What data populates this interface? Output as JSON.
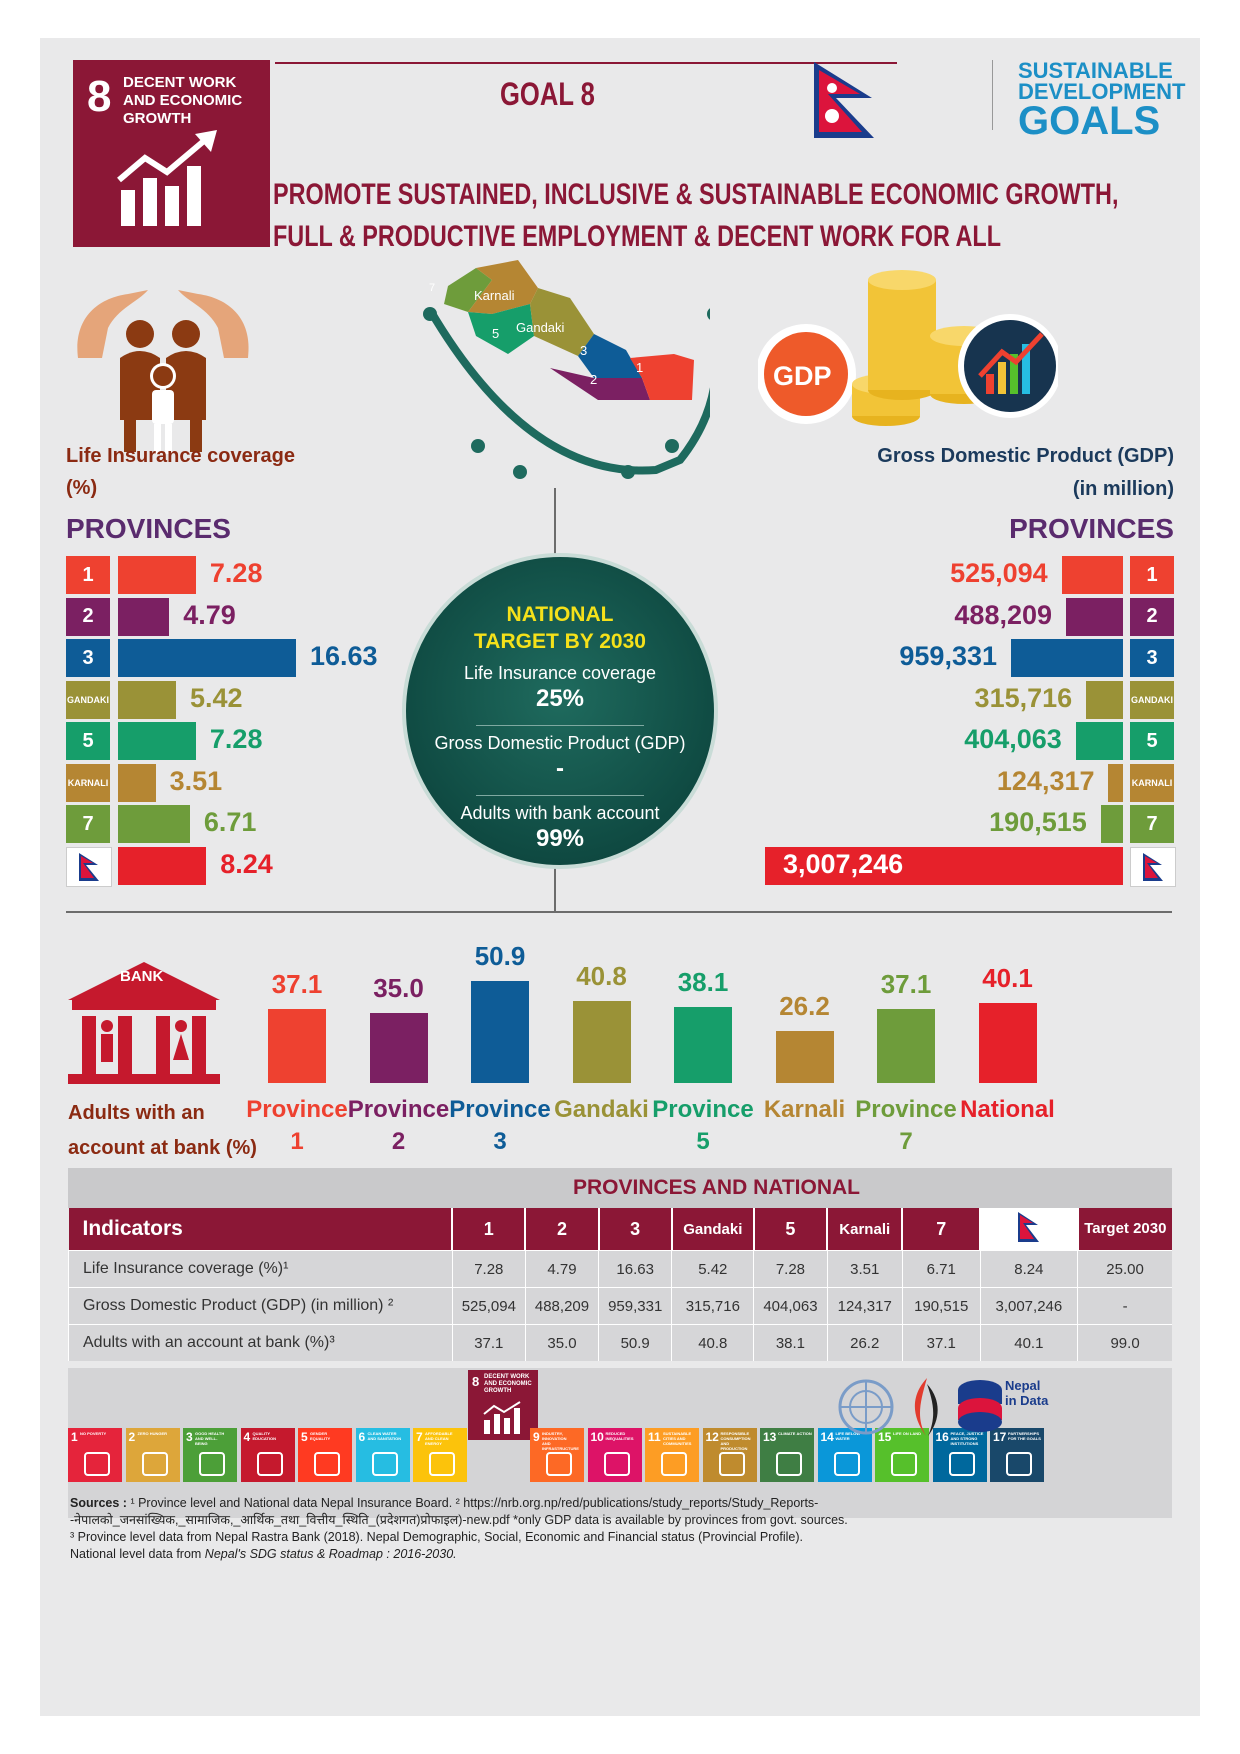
{
  "header": {
    "goal_number": "8",
    "goal_name": "DECENT WORK AND ECONOMIC GROWTH",
    "goal_title": "GOAL 8",
    "headline_line1": "PROMOTE SUSTAINED, INCLUSIVE & SUSTAINABLE ECONOMIC GROWTH,",
    "headline_line2": "FULL & PRODUCTIVE EMPLOYMENT & DECENT WORK FOR ALL",
    "sdg_logo_line1": "SUSTAINABLE",
    "sdg_logo_line2": "DEVELOPMENT",
    "sdg_logo_line3": "GOALS"
  },
  "colors": {
    "p1": "#ee4130",
    "p2": "#7b2062",
    "p3": "#0e5c97",
    "gandaki": "#9a9237",
    "p5": "#169e6a",
    "karnali": "#b58633",
    "p7": "#6e9c3b",
    "national": "#e6212a"
  },
  "map_labels": [
    "7",
    "Karnali",
    "5",
    "Gandaki",
    "3",
    "2",
    "1"
  ],
  "gdp_badge": "GDP",
  "life_insurance": {
    "title_line1": "Life Insurance coverage",
    "title_line2": "(%)",
    "provinces_heading": "PROVINCES"
  },
  "gdp": {
    "title_line1": "Gross Domestic Product (GDP)",
    "title_line2": "(in million)",
    "provinces_heading": "PROVINCES"
  },
  "target": {
    "title_line1": "NATIONAL",
    "title_line2": "TARGET BY 2030",
    "items": [
      {
        "label": "Life Insurance coverage",
        "value": "25%"
      },
      {
        "label": "Gross Domestic Product (GDP)",
        "value": "-"
      },
      {
        "label": "Adults with bank account",
        "value": "99%"
      }
    ]
  },
  "bank": {
    "icon_label": "BANK",
    "title_line1": "Adults with an",
    "title_line2": "account at bank (%)"
  },
  "chart_data": [
    {
      "type": "bar",
      "title": "Life Insurance coverage (%)",
      "categories": [
        "1",
        "2",
        "3",
        "GANDAKI",
        "5",
        "KARNALI",
        "7",
        "National"
      ],
      "values": [
        7.28,
        4.79,
        16.63,
        5.42,
        7.28,
        3.51,
        6.71,
        8.24
      ],
      "value_labels": [
        "7.28",
        "4.79",
        "16.63",
        "5.42",
        "7.28",
        "3.51",
        "6.71",
        "8.24"
      ],
      "orientation": "horizontal"
    },
    {
      "type": "bar",
      "title": "Gross Domestic Product (GDP) (in million)",
      "categories": [
        "1",
        "2",
        "3",
        "GANDAKI",
        "5",
        "KARNALI",
        "7",
        "National"
      ],
      "values": [
        525094,
        488209,
        959331,
        315716,
        404063,
        124317,
        190515,
        3007246
      ],
      "value_labels": [
        "525,094",
        "488,209",
        "959,331",
        "315,716",
        "404,063",
        "124,317",
        "190,515",
        "3,007,246"
      ],
      "orientation": "horizontal"
    },
    {
      "type": "bar",
      "title": "Adults with an account at bank (%)",
      "categories": [
        "Province 1",
        "Province 2",
        "Province 3",
        "Gandaki",
        "Province 5",
        "Karnali",
        "Province 7",
        "National"
      ],
      "label_lines": [
        [
          "Province",
          "1"
        ],
        [
          "Province",
          "2"
        ],
        [
          "Province",
          "3"
        ],
        [
          "Gandaki",
          ""
        ],
        [
          "Province",
          "5"
        ],
        [
          "Karnali",
          ""
        ],
        [
          "Province",
          "7"
        ],
        [
          "National",
          ""
        ]
      ],
      "values": [
        37.1,
        35.0,
        50.9,
        40.8,
        38.1,
        26.2,
        37.1,
        40.1
      ],
      "value_labels": [
        "37.1",
        "35.0",
        "50.9",
        "40.8",
        "38.1",
        "26.2",
        "37.1",
        "40.1"
      ],
      "orientation": "vertical"
    }
  ],
  "table": {
    "title": "PROVINCES AND NATIONAL",
    "headers": [
      "Indicators",
      "1",
      "2",
      "3",
      "Gandaki",
      "5",
      "Karnali",
      "7",
      "",
      "Target 2030"
    ],
    "rows": [
      {
        "indicator": "Life Insurance coverage (%)¹",
        "cells": [
          "7.28",
          "4.79",
          "16.63",
          "5.42",
          "7.28",
          "3.51",
          "6.71",
          "8.24",
          "25.00"
        ]
      },
      {
        "indicator": "Gross Domestic Product (GDP) (in million) ²",
        "cells": [
          "525,094",
          "488,209",
          "959,331",
          "315,716",
          "404,063",
          "124,317",
          "190,515",
          "3,007,246",
          "-"
        ]
      },
      {
        "indicator": "Adults with an account at bank (%)³",
        "cells": [
          "37.1",
          "35.0",
          "50.9",
          "40.8",
          "38.1",
          "26.2",
          "37.1",
          "40.1",
          "99.0"
        ]
      }
    ]
  },
  "footer": {
    "center_tile": "DECENT WORK AND ECONOMIC GROWTH",
    "sdg_tiles": [
      {
        "n": "1",
        "t": "NO POVERTY",
        "c": "#e5243b"
      },
      {
        "n": "2",
        "t": "ZERO HUNGER",
        "c": "#dda63a"
      },
      {
        "n": "3",
        "t": "GOOD HEALTH AND WELL-BEING",
        "c": "#4c9f38"
      },
      {
        "n": "4",
        "t": "QUALITY EDUCATION",
        "c": "#c5192d"
      },
      {
        "n": "5",
        "t": "GENDER EQUALITY",
        "c": "#ff3a21"
      },
      {
        "n": "6",
        "t": "CLEAN WATER AND SANITATION",
        "c": "#26bde2"
      },
      {
        "n": "7",
        "t": "AFFORDABLE AND CLEAN ENERGY",
        "c": "#fcc30b"
      },
      {
        "n": "9",
        "t": "INDUSTRY, INNOVATION AND INFRASTRUCTURE",
        "c": "#fd6925"
      },
      {
        "n": "10",
        "t": "REDUCED INEQUALITIES",
        "c": "#dd1367"
      },
      {
        "n": "11",
        "t": "SUSTAINABLE CITIES AND COMMUNITIES",
        "c": "#fd9d24"
      },
      {
        "n": "12",
        "t": "RESPONSIBLE CONSUMPTION AND PRODUCTION",
        "c": "#bf8b2e"
      },
      {
        "n": "13",
        "t": "CLIMATE ACTION",
        "c": "#3f7e44"
      },
      {
        "n": "14",
        "t": "LIFE BELOW WATER",
        "c": "#0a97d9"
      },
      {
        "n": "15",
        "t": "LIFE ON LAND",
        "c": "#56c02b"
      },
      {
        "n": "16",
        "t": "PEACE, JUSTICE AND STRONG INSTITUTIONS",
        "c": "#00689d"
      },
      {
        "n": "17",
        "t": "PARTNERSHIPS FOR THE GOALS",
        "c": "#19486a"
      }
    ],
    "nepal_in_data": "Nepal in Data"
  },
  "sources": {
    "label": "Sources :",
    "line1": "¹ Province level and National data Nepal Insurance Board. ² https://nrb.org.np/red/publications/study_reports/Study_Reports-",
    "line2": "-नेपालको_जनसांख्यिक,_सामाजिक,_आर्थिक_तथा_वित्तीय_स्थिति_(प्रदेशगत)प्रोफाइल)-new.pdf  *only GDP data is available by provinces from govt. sources.",
    "line3": "³ Province level data from Nepal Rastra Bank (2018). Nepal Demographic, Social, Economic and Financial status (Provincial Profile).",
    "line4_prefix": "National level data from ",
    "line4_italic": "Nepal's SDG status & Roadmap : 2016-2030."
  }
}
